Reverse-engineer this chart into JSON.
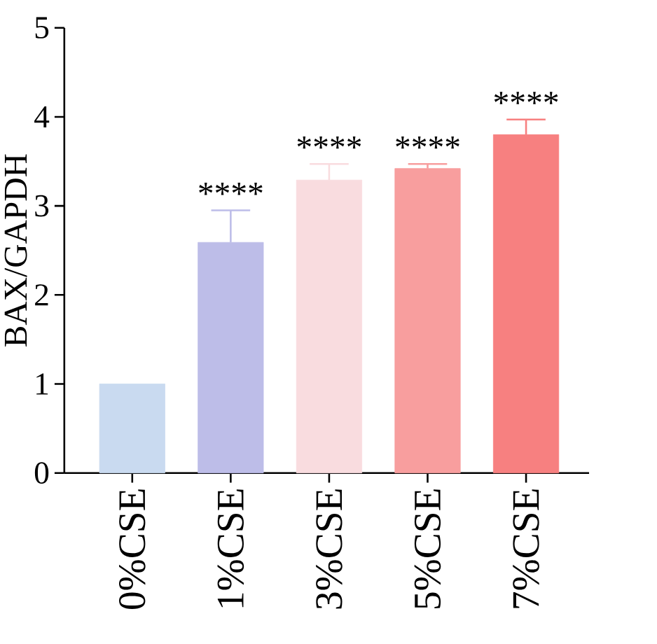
{
  "chart_data": {
    "type": "bar",
    "ylabel": "BAX/GAPDH",
    "categories": [
      "0%CSE",
      "1%CSE",
      "3%CSE",
      "5%CSE",
      "7%CSE"
    ],
    "values": [
      1.0,
      2.59,
      3.29,
      3.42,
      3.8
    ],
    "errors": [
      null,
      0.36,
      0.18,
      0.05,
      0.17
    ],
    "colors": [
      "#c9daf0",
      "#bdbde8",
      "#f9dcdf",
      "#f89e9e",
      "#f78080"
    ],
    "ylim": [
      0,
      5
    ],
    "yticks": [
      0,
      1,
      2,
      3,
      4,
      5
    ],
    "annotations": [
      "****",
      "****",
      "****",
      "****"
    ]
  }
}
